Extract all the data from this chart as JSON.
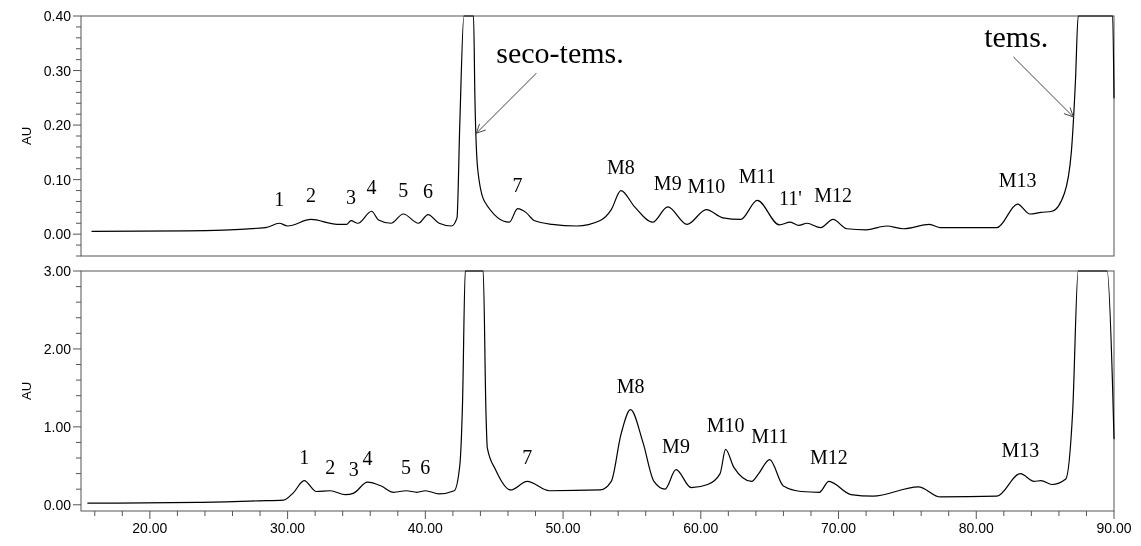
{
  "chart_data": [
    {
      "type": "line",
      "ylabel": "AU",
      "xlim": [
        15,
        90
      ],
      "ylim": [
        -0.04,
        0.4
      ],
      "tick_labels": "y",
      "yticks": [
        {
          "value": -0.04,
          "label": null
        },
        {
          "value": -0.02,
          "label": null
        },
        {
          "value": 0,
          "label": "0.00"
        },
        {
          "value": 0.02,
          "label": null
        },
        {
          "value": 0.04,
          "label": null
        },
        {
          "value": 0.06,
          "label": null
        },
        {
          "value": 0.08,
          "label": null
        },
        {
          "value": 0.1,
          "label": "0.10"
        },
        {
          "value": 0.12,
          "label": null
        },
        {
          "value": 0.14,
          "label": null
        },
        {
          "value": 0.16,
          "label": null
        },
        {
          "value": 0.18,
          "label": null
        },
        {
          "value": 0.2,
          "label": "0.20"
        },
        {
          "value": 0.22,
          "label": null
        },
        {
          "value": 0.24,
          "label": null
        },
        {
          "value": 0.26,
          "label": null
        },
        {
          "value": 0.28,
          "label": null
        },
        {
          "value": 0.3,
          "label": "0.30"
        },
        {
          "value": 0.32,
          "label": null
        },
        {
          "value": 0.34,
          "label": null
        },
        {
          "value": 0.36,
          "label": null
        },
        {
          "value": 0.38,
          "label": null
        },
        {
          "value": 0.4,
          "label": "0.40"
        }
      ],
      "x": [
        15.8,
        22.7,
        28.4,
        29.4,
        30.0,
        31.7,
        33.6,
        34.3,
        34.6,
        35.1,
        36.1,
        36.6,
        37.5,
        38.4,
        39.5,
        40.2,
        41.0,
        41.9,
        42.3,
        42.5,
        42.8,
        43.5,
        43.6,
        43.8,
        44.3,
        46.1,
        46.7,
        47.3,
        47.9,
        49.2,
        51.0,
        52.7,
        53.5,
        54.2,
        55.2,
        56.5,
        57.6,
        59.0,
        60.4,
        61.6,
        62.9,
        64.1,
        65.7,
        66.5,
        67.1,
        67.7,
        68.7,
        69.6,
        70.6,
        72.0,
        73.5,
        74.7,
        76.6,
        77.4,
        81.5,
        83.0,
        83.9,
        84.7,
        85.5,
        86.4,
        86.9,
        87.2,
        87.4,
        89.9,
        90.0
      ],
      "series": [
        {
          "color": "#000000",
          "values": [
            0.005,
            0.006,
            0.012,
            0.02,
            0.015,
            0.027,
            0.018,
            0.018,
            0.025,
            0.02,
            0.042,
            0.026,
            0.02,
            0.037,
            0.02,
            0.036,
            0.02,
            0.015,
            0.03,
            0.2,
            0.4,
            0.4,
            0.25,
            0.12,
            0.06,
            0.022,
            0.047,
            0.04,
            0.025,
            0.018,
            0.015,
            0.025,
            0.045,
            0.08,
            0.05,
            0.022,
            0.05,
            0.018,
            0.045,
            0.03,
            0.027,
            0.062,
            0.017,
            0.022,
            0.016,
            0.02,
            0.012,
            0.027,
            0.01,
            0.008,
            0.015,
            0.01,
            0.018,
            0.012,
            0.012,
            0.055,
            0.037,
            0.04,
            0.042,
            0.075,
            0.15,
            0.28,
            0.4,
            0.4,
            0.25
          ]
        }
      ],
      "annotations": [
        {
          "text": "seco-tems.",
          "x": 43.7,
          "y": 0.185
        },
        {
          "text": "tems.",
          "x": 87.05,
          "y": 0.215
        },
        {
          "text": "1",
          "x": 29.4,
          "y": 0.02
        },
        {
          "text": "2",
          "x": 31.7,
          "y": 0.027
        },
        {
          "text": "3",
          "x": 34.6,
          "y": 0.025
        },
        {
          "text": "4",
          "x": 36.1,
          "y": 0.042
        },
        {
          "text": "5",
          "x": 38.4,
          "y": 0.037
        },
        {
          "text": "6",
          "x": 40.2,
          "y": 0.036
        },
        {
          "text": "7",
          "x": 46.7,
          "y": 0.047
        },
        {
          "text": "M8",
          "x": 54.2,
          "y": 0.08
        },
        {
          "text": "M9",
          "x": 57.6,
          "y": 0.05
        },
        {
          "text": "M10",
          "x": 60.4,
          "y": 0.045
        },
        {
          "text": "M11",
          "x": 64.1,
          "y": 0.062
        },
        {
          "text": "11'",
          "x": 66.5,
          "y": 0.022
        },
        {
          "text": "M12",
          "x": 69.6,
          "y": 0.027
        },
        {
          "text": "M13",
          "x": 83.0,
          "y": 0.055
        }
      ]
    },
    {
      "type": "line",
      "ylabel": "AU",
      "xlim": [
        15,
        90
      ],
      "ylim": [
        -0.08,
        3.0
      ],
      "yticks": [
        {
          "value": 0,
          "label": "0.00"
        },
        {
          "value": 0.2,
          "label": null
        },
        {
          "value": 0.4,
          "label": null
        },
        {
          "value": 0.6,
          "label": null
        },
        {
          "value": 0.8,
          "label": null
        },
        {
          "value": 1,
          "label": "1.00"
        },
        {
          "value": 1.2,
          "label": null
        },
        {
          "value": 1.4,
          "label": null
        },
        {
          "value": 1.6,
          "label": null
        },
        {
          "value": 1.8,
          "label": null
        },
        {
          "value": 2,
          "label": "2.00"
        },
        {
          "value": 2.2,
          "label": null
        },
        {
          "value": 2.4,
          "label": null
        },
        {
          "value": 2.6,
          "label": null
        },
        {
          "value": 2.8,
          "label": null
        },
        {
          "value": 3,
          "label": "3.00"
        }
      ],
      "xticks": [
        {
          "value": 16,
          "label": null
        },
        {
          "value": 18,
          "label": null
        },
        {
          "value": 20,
          "label": "20.00"
        },
        {
          "value": 22,
          "label": null
        },
        {
          "value": 24,
          "label": null
        },
        {
          "value": 26,
          "label": null
        },
        {
          "value": 28,
          "label": null
        },
        {
          "value": 30,
          "label": "30.00"
        },
        {
          "value": 32,
          "label": null
        },
        {
          "value": 34,
          "label": null
        },
        {
          "value": 36,
          "label": null
        },
        {
          "value": 38,
          "label": null
        },
        {
          "value": 40,
          "label": "40.00"
        },
        {
          "value": 42,
          "label": null
        },
        {
          "value": 44,
          "label": null
        },
        {
          "value": 46,
          "label": null
        },
        {
          "value": 48,
          "label": null
        },
        {
          "value": 50,
          "label": "50.00"
        },
        {
          "value": 52,
          "label": null
        },
        {
          "value": 54,
          "label": null
        },
        {
          "value": 56,
          "label": null
        },
        {
          "value": 58,
          "label": null
        },
        {
          "value": 60,
          "label": "60.00"
        },
        {
          "value": 62,
          "label": null
        },
        {
          "value": 64,
          "label": null
        },
        {
          "value": 66,
          "label": null
        },
        {
          "value": 68,
          "label": null
        },
        {
          "value": 70,
          "label": "70.00"
        },
        {
          "value": 72,
          "label": null
        },
        {
          "value": 74,
          "label": null
        },
        {
          "value": 76,
          "label": null
        },
        {
          "value": 78,
          "label": null
        },
        {
          "value": 80,
          "label": "80.00"
        },
        {
          "value": 82,
          "label": null
        },
        {
          "value": 84,
          "label": null
        },
        {
          "value": 86,
          "label": null
        },
        {
          "value": 88,
          "label": null
        },
        {
          "value": 90,
          "label": "90.00"
        }
      ],
      "x": [
        15.5,
        23.5,
        27.9,
        29.7,
        30.4,
        31.2,
        32.1,
        33.1,
        34.2,
        34.8,
        35.8,
        36.8,
        37.7,
        38.6,
        39.4,
        40.0,
        41.0,
        42.1,
        42.5,
        42.7,
        42.9,
        44.2,
        44.4,
        44.5,
        45.1,
        46.2,
        47.4,
        49.0,
        52.7,
        53.5,
        54.2,
        54.9,
        55.8,
        56.6,
        57.4,
        58.2,
        59.3,
        60.5,
        61.4,
        61.8,
        62.4,
        63.7,
        64.2,
        65.0,
        66.0,
        67.3,
        68.6,
        69.3,
        70.9,
        72.5,
        75.8,
        77.4,
        81.5,
        83.2,
        84.2,
        84.7,
        85.5,
        86.5,
        87.0,
        87.4,
        89.5,
        89.9,
        90.0
      ],
      "series": [
        {
          "color": "#000000",
          "values": [
            0.02,
            0.03,
            0.05,
            0.06,
            0.15,
            0.31,
            0.17,
            0.18,
            0.13,
            0.15,
            0.29,
            0.24,
            0.16,
            0.18,
            0.16,
            0.18,
            0.14,
            0.18,
            0.5,
            1.3,
            3.0,
            3.0,
            1.2,
            0.73,
            0.45,
            0.19,
            0.3,
            0.18,
            0.19,
            0.3,
            0.9,
            1.22,
            0.8,
            0.3,
            0.2,
            0.45,
            0.22,
            0.26,
            0.4,
            0.71,
            0.48,
            0.3,
            0.4,
            0.58,
            0.24,
            0.17,
            0.16,
            0.3,
            0.13,
            0.11,
            0.23,
            0.1,
            0.11,
            0.4,
            0.3,
            0.31,
            0.26,
            0.33,
            1.2,
            3.0,
            3.0,
            1.5,
            0.85
          ]
        }
      ],
      "annotations": [
        {
          "text": "1",
          "x": 31.2,
          "y": 0.31
        },
        {
          "text": "2",
          "x": 33.1,
          "y": 0.18
        },
        {
          "text": "3",
          "x": 34.8,
          "y": 0.15
        },
        {
          "text": "4",
          "x": 35.8,
          "y": 0.29
        },
        {
          "text": "5",
          "x": 38.6,
          "y": 0.18
        },
        {
          "text": "6",
          "x": 40.0,
          "y": 0.18
        },
        {
          "text": "7",
          "x": 47.4,
          "y": 0.3
        },
        {
          "text": "M8",
          "x": 54.9,
          "y": 1.22
        },
        {
          "text": "M9",
          "x": 58.2,
          "y": 0.45
        },
        {
          "text": "M10",
          "x": 61.8,
          "y": 0.71
        },
        {
          "text": "M11",
          "x": 65.0,
          "y": 0.58
        },
        {
          "text": "M12",
          "x": 69.3,
          "y": 0.3
        },
        {
          "text": "M13",
          "x": 83.2,
          "y": 0.4
        }
      ]
    }
  ]
}
